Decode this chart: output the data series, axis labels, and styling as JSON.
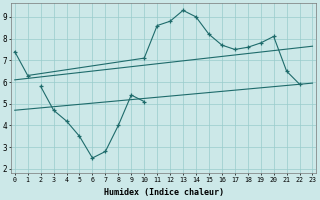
{
  "xlabel": "Humidex (Indice chaleur)",
  "series1_x": [
    0,
    1,
    10,
    11,
    12,
    13,
    14,
    15,
    16,
    17,
    18,
    19,
    20,
    21,
    22
  ],
  "series1_y": [
    7.4,
    6.3,
    7.1,
    8.6,
    8.8,
    9.3,
    9.0,
    8.2,
    7.7,
    7.5,
    7.6,
    7.8,
    8.1,
    6.5,
    5.9
  ],
  "series2_x": [
    2,
    3,
    4,
    5,
    6,
    7,
    8,
    9,
    10
  ],
  "series2_y": [
    5.8,
    4.7,
    4.2,
    3.5,
    2.5,
    2.8,
    4.0,
    5.4,
    5.1
  ],
  "trend1_x": [
    0,
    23
  ],
  "trend1_y": [
    6.1,
    7.65
  ],
  "trend2_x": [
    0,
    23
  ],
  "trend2_y": [
    4.7,
    5.95
  ],
  "color": "#1e6b6b",
  "bg_color": "#cce8e8",
  "grid_color": "#99cccc",
  "ylim": [
    1.8,
    9.65
  ],
  "xlim": [
    -0.3,
    23.3
  ],
  "yticks": [
    2,
    3,
    4,
    5,
    6,
    7,
    8,
    9
  ],
  "xticks": [
    0,
    1,
    2,
    3,
    4,
    5,
    6,
    7,
    8,
    9,
    10,
    11,
    12,
    13,
    14,
    15,
    16,
    17,
    18,
    19,
    20,
    21,
    22,
    23
  ]
}
